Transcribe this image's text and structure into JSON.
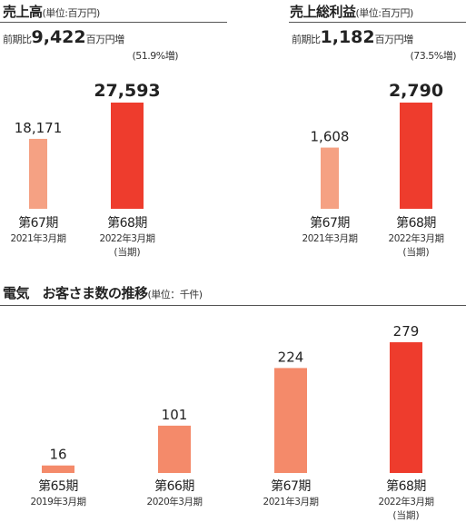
{
  "chart_data": [
    {
      "type": "bar",
      "title": "売上高",
      "unit_note": "(単位:百万円)",
      "delta": {
        "prefix": "前期比",
        "value": "9,422",
        "suffix": "百万円増",
        "pct": "(51.9%増)"
      },
      "categories": [
        "第67期",
        "第68期"
      ],
      "category_sub": [
        "2021年3月期",
        "2022年3月期"
      ],
      "category_sub2": [
        "",
        "(当期)"
      ],
      "values": [
        18171,
        27593
      ],
      "value_labels": [
        "18,171",
        "27,593"
      ],
      "emphasis": [
        false,
        true
      ],
      "ylim": [
        0,
        27593
      ]
    },
    {
      "type": "bar",
      "title": "売上総利益",
      "unit_note": "(単位:百万円)",
      "delta": {
        "prefix": "前期比",
        "value": "1,182",
        "suffix": "百万円増",
        "pct": "(73.5%増)"
      },
      "categories": [
        "第67期",
        "第68期"
      ],
      "category_sub": [
        "2021年3月期",
        "2022年3月期"
      ],
      "category_sub2": [
        "",
        "(当期)"
      ],
      "values": [
        1608,
        2790
      ],
      "value_labels": [
        "1,608",
        "2,790"
      ],
      "emphasis": [
        false,
        true
      ],
      "ylim": [
        0,
        2790
      ]
    },
    {
      "type": "bar",
      "title": "電気　お客さま数の推移",
      "unit_note": "(単位：千件)",
      "categories": [
        "第65期",
        "第66期",
        "第67期",
        "第68期"
      ],
      "category_sub": [
        "2019年3月期",
        "2020年3月期",
        "2021年3月期",
        "2022年3月期"
      ],
      "category_sub2": [
        "",
        "",
        "",
        "(当期)"
      ],
      "values": [
        16,
        101,
        224,
        279
      ],
      "value_labels": [
        "16",
        "101",
        "224",
        "279"
      ],
      "emphasis": [
        false,
        false,
        false,
        true
      ],
      "ylim": [
        0,
        279
      ]
    }
  ],
  "colors": {
    "prev_light": "#f5a183",
    "prev_mid": "#f48a6a",
    "current": "#ee3c2d",
    "text": "#222222",
    "rule": "#555555"
  }
}
